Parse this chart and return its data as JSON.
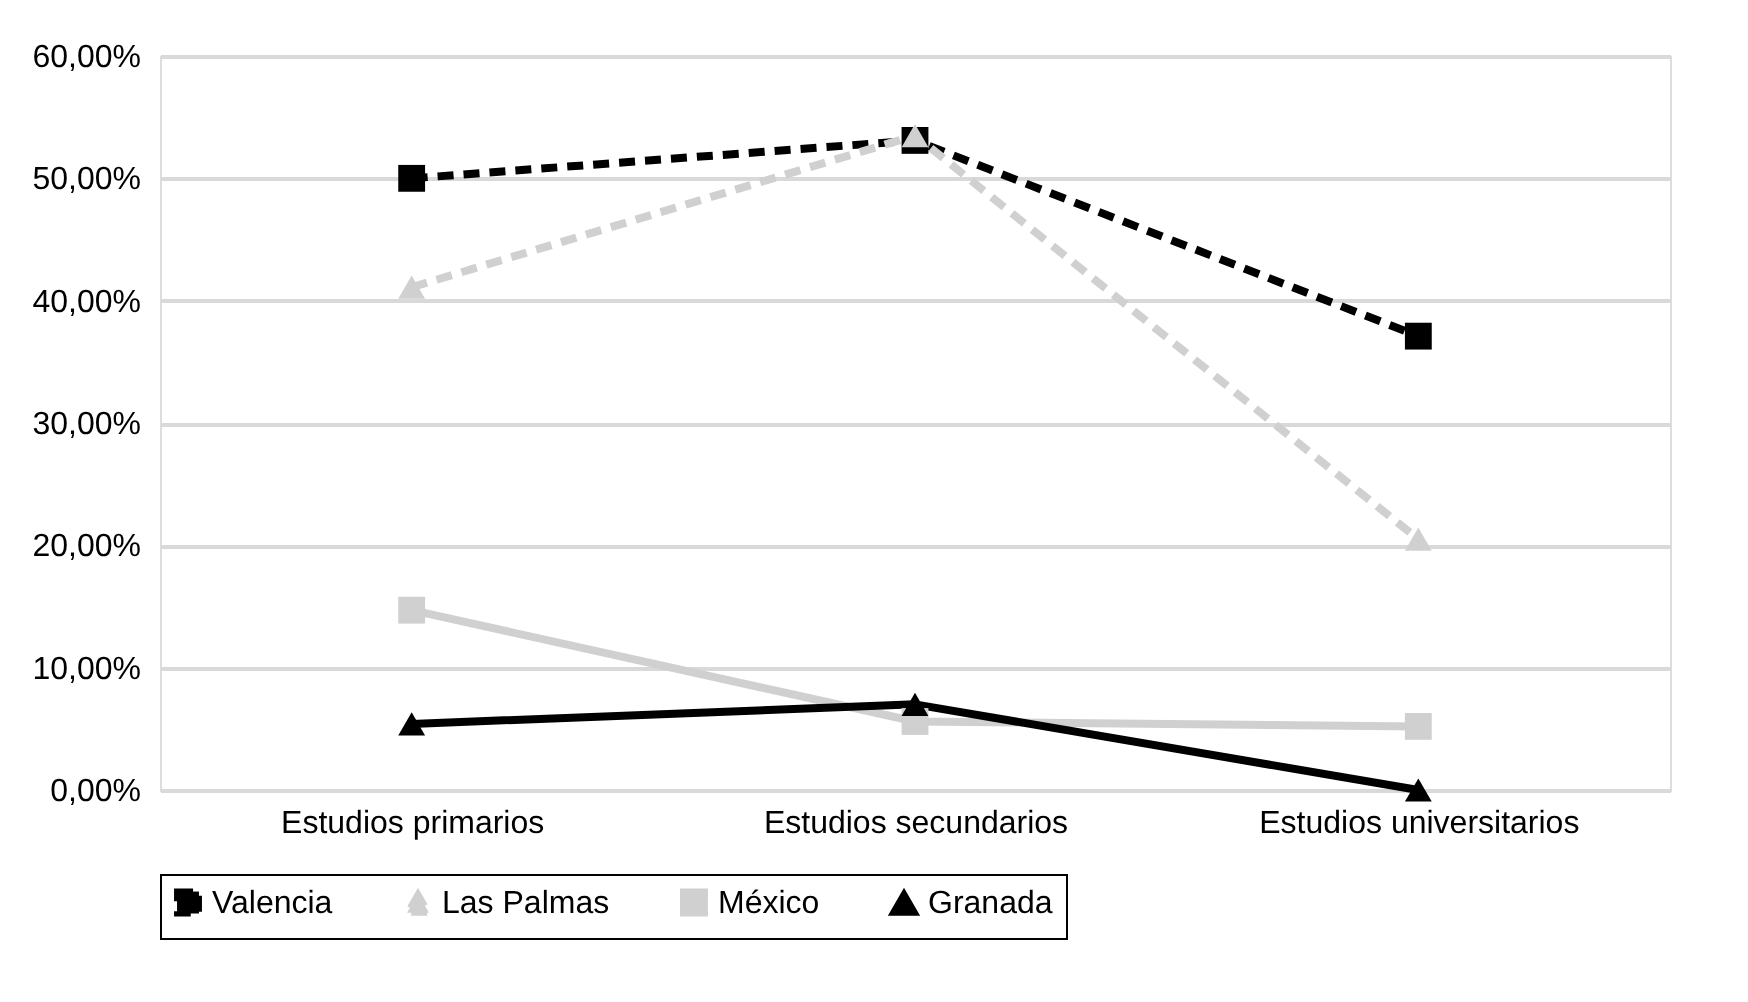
{
  "chart_data": {
    "type": "line",
    "categories": [
      "Estudios primarios",
      "Estudios secundarios",
      "Estudios universitarios"
    ],
    "series": [
      {
        "name": "Valencia",
        "color": "#000000",
        "values": [
          50.0,
          53.1,
          37.1
        ],
        "line_style": "dashed",
        "marker": "square"
      },
      {
        "name": "Las Palmas",
        "color": "#d0d0d0",
        "values": [
          41.1,
          53.5,
          20.5
        ],
        "line_style": "dashed",
        "marker": "triangle"
      },
      {
        "name": "México",
        "color": "#d0d0d0",
        "values": [
          14.7,
          5.6,
          5.2
        ],
        "line_style": "solid",
        "marker": "square"
      },
      {
        "name": "Granada",
        "color": "#000000",
        "values": [
          5.4,
          7.0,
          0.0
        ],
        "line_style": "solid",
        "marker": "triangle"
      }
    ],
    "ylim": [
      0,
      60
    ],
    "yticks": [
      {
        "value": 0,
        "label": "0,00%"
      },
      {
        "value": 10,
        "label": "10,00%"
      },
      {
        "value": 20,
        "label": "20,00%"
      },
      {
        "value": 30,
        "label": "30,00%"
      },
      {
        "value": 40,
        "label": "40,00%"
      },
      {
        "value": 50,
        "label": "50,00%"
      },
      {
        "value": 60,
        "label": "60,00%"
      }
    ],
    "grid": "y",
    "legend": "bottom"
  }
}
